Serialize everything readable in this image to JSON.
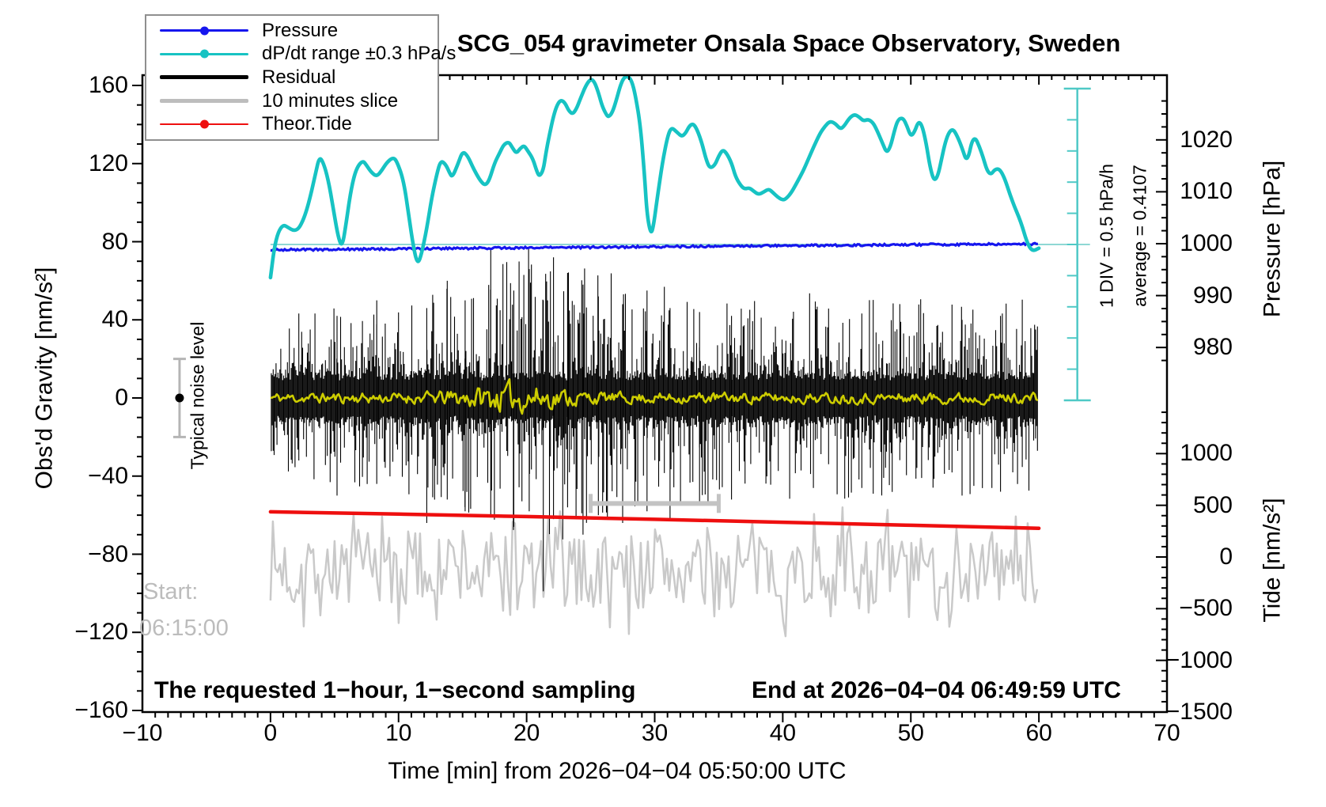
{
  "chart_data": {
    "type": "line",
    "title": "SCG_054 gravimeter Onsala Space Observatory, Sweden",
    "legend": {
      "position": "top-left",
      "items": [
        {
          "label": "Pressure",
          "color": "#1616ee",
          "marker": "dot-line",
          "thickness": 3
        },
        {
          "label": "dP/dt range ±0.3 hPa/s",
          "color": "#17c3c3",
          "marker": "dot-line",
          "thickness": 3
        },
        {
          "label": "Residual",
          "color": "#000000",
          "marker": "line",
          "thickness": 5
        },
        {
          "label": "10 minutes slice",
          "color": "#bdbdbd",
          "marker": "line",
          "thickness": 5
        },
        {
          "label": "Theor.Tide",
          "color": "#ee0f0f",
          "marker": "dot-line",
          "thickness": 2
        }
      ]
    },
    "x_axis": {
      "label": "Time [min] from 2026−04−04 05:50:00 UTC",
      "range": [
        -10,
        70
      ],
      "major_ticks": [
        -10,
        0,
        10,
        20,
        30,
        40,
        50,
        60,
        70
      ],
      "minor_step": 1,
      "grid": false
    },
    "y_axis_left": {
      "label": "Obs'd Gravity [nm/s²]",
      "range": [
        -161,
        165
      ],
      "major_ticks": [
        160,
        120,
        80,
        40,
        0,
        -40,
        -80,
        -120,
        -160
      ],
      "minor_step": 10,
      "grid": false
    },
    "y_axis_pressure": {
      "label": "Pressure [hPa]",
      "major_ticks": [
        1020,
        1010,
        1000,
        990,
        980
      ],
      "minor_step": 2.5
    },
    "y_axis_tide": {
      "label": "Tide [nm/s²]",
      "major_ticks": [
        1000,
        500,
        0,
        -500,
        -1000,
        -1500
      ],
      "minor_step": 100
    },
    "annotations": {
      "noise_bar": {
        "label": "Typical noise level",
        "center_nms2": 0,
        "half_range_nms2": 20,
        "x_min": -7.1
      },
      "start_label": {
        "line1": "Start:",
        "line2": "06:15:00"
      },
      "sampling_note": "The requested 1−hour, 1−second sampling",
      "end_note": "End at 2026−04−04 06:49:59 UTC",
      "div_scale": {
        "line1": "1 DIV = 0.5 hPa/h",
        "line2": "average = 0.4107",
        "divisions": 10,
        "div_hpa_per_h": 0.5,
        "x_min": 63
      },
      "slice_bar": {
        "from_min": 25,
        "to_min": 35,
        "at_nms2": -54
      }
    },
    "series": {
      "pressure_hpa": {
        "name": "Pressure",
        "color": "#1616ee",
        "unit": "hPa",
        "points": [
          [
            0,
            998.8
          ],
          [
            10,
            999.0
          ],
          [
            20,
            999.2
          ],
          [
            30,
            999.4
          ],
          [
            40,
            999.6
          ],
          [
            50,
            999.8
          ],
          [
            60,
            999.95
          ]
        ],
        "jitter_seed": 5
      },
      "dpdt_hpa_per_h": {
        "name": "dP/dt range ±0.3 hPa/s",
        "color": "#17c3c3",
        "unit": "hPa/h",
        "zero_ref_at_bar_mid": true,
        "points": [
          [
            0,
            -0.53
          ],
          [
            0.3,
            -0.05
          ],
          [
            0.6,
            0.2
          ],
          [
            1,
            0.32
          ],
          [
            1.4,
            0.27
          ],
          [
            1.8,
            0.22
          ],
          [
            2.2,
            0.25
          ],
          [
            2.6,
            0.41
          ],
          [
            3,
            0.67
          ],
          [
            3.5,
            1.12
          ],
          [
            3.8,
            1.4
          ],
          [
            4.1,
            1.33
          ],
          [
            4.5,
            1.05
          ],
          [
            4.9,
            0.58
          ],
          [
            5.3,
            0.1
          ],
          [
            5.6,
            -0.04
          ],
          [
            5.9,
            0.33
          ],
          [
            6.3,
            0.9
          ],
          [
            6.7,
            1.22
          ],
          [
            7.2,
            1.35
          ],
          [
            7.5,
            1.27
          ],
          [
            7.9,
            1.15
          ],
          [
            8.3,
            1.09
          ],
          [
            8.7,
            1.19
          ],
          [
            9.1,
            1.32
          ],
          [
            9.6,
            1.4
          ],
          [
            9.9,
            1.32
          ],
          [
            10.4,
            1.02
          ],
          [
            10.8,
            0.46
          ],
          [
            11.2,
            -0.09
          ],
          [
            11.5,
            -0.32
          ],
          [
            11.8,
            -0.15
          ],
          [
            12.2,
            0.25
          ],
          [
            12.6,
            0.76
          ],
          [
            13,
            1.14
          ],
          [
            13.3,
            1.35
          ],
          [
            13.7,
            1.28
          ],
          [
            14,
            1.14
          ],
          [
            14.2,
            1.08
          ],
          [
            14.6,
            1.27
          ],
          [
            15,
            1.5
          ],
          [
            15.4,
            1.42
          ],
          [
            15.8,
            1.24
          ],
          [
            16.1,
            1.12
          ],
          [
            16.5,
            0.99
          ],
          [
            16.8,
            0.95
          ],
          [
            17.1,
            1.04
          ],
          [
            17.5,
            1.31
          ],
          [
            17.9,
            1.47
          ],
          [
            18.2,
            1.6
          ],
          [
            18.6,
            1.65
          ],
          [
            18.9,
            1.55
          ],
          [
            19.2,
            1.46
          ],
          [
            19.5,
            1.54
          ],
          [
            19.8,
            1.59
          ],
          [
            20.1,
            1.5
          ],
          [
            20.5,
            1.37
          ],
          [
            20.8,
            1.17
          ],
          [
            21,
            1.09
          ],
          [
            21.3,
            1.19
          ],
          [
            21.5,
            1.46
          ],
          [
            21.8,
            1.78
          ],
          [
            22.1,
            2.06
          ],
          [
            22.4,
            2.25
          ],
          [
            22.7,
            2.32
          ],
          [
            23,
            2.27
          ],
          [
            23.3,
            2.14
          ],
          [
            23.6,
            2.09
          ],
          [
            23.9,
            2.18
          ],
          [
            24.2,
            2.34
          ],
          [
            24.6,
            2.54
          ],
          [
            25,
            2.66
          ],
          [
            25.3,
            2.61
          ],
          [
            25.6,
            2.44
          ],
          [
            25.9,
            2.22
          ],
          [
            26.2,
            2.09
          ],
          [
            26.4,
            2.04
          ],
          [
            26.7,
            2.12
          ],
          [
            27,
            2.31
          ],
          [
            27.3,
            2.54
          ],
          [
            27.6,
            2.68
          ],
          [
            27.9,
            2.7
          ],
          [
            28.2,
            2.63
          ],
          [
            28.5,
            2.39
          ],
          [
            28.9,
            1.88
          ],
          [
            29.2,
            1.12
          ],
          [
            29.4,
            0.48
          ],
          [
            29.7,
            0.16
          ],
          [
            29.9,
            0.29
          ],
          [
            30.2,
            0.74
          ],
          [
            30.6,
            1.31
          ],
          [
            31,
            1.73
          ],
          [
            31.3,
            1.88
          ],
          [
            31.7,
            1.81
          ],
          [
            32.1,
            1.73
          ],
          [
            32.4,
            1.78
          ],
          [
            32.7,
            1.9
          ],
          [
            33,
            1.94
          ],
          [
            33.3,
            1.85
          ],
          [
            33.7,
            1.62
          ],
          [
            34,
            1.37
          ],
          [
            34.3,
            1.22
          ],
          [
            34.7,
            1.27
          ],
          [
            35,
            1.42
          ],
          [
            35.3,
            1.52
          ],
          [
            35.6,
            1.47
          ],
          [
            36,
            1.31
          ],
          [
            36.3,
            1.09
          ],
          [
            36.7,
            0.95
          ],
          [
            37,
            0.89
          ],
          [
            37.4,
            0.91
          ],
          [
            37.7,
            0.86
          ],
          [
            38.1,
            0.8
          ],
          [
            38.5,
            0.84
          ],
          [
            38.9,
            0.89
          ],
          [
            39.2,
            0.84
          ],
          [
            39.6,
            0.76
          ],
          [
            40,
            0.71
          ],
          [
            40.3,
            0.74
          ],
          [
            40.7,
            0.84
          ],
          [
            41.1,
            0.99
          ],
          [
            41.6,
            1.18
          ],
          [
            42,
            1.37
          ],
          [
            42.4,
            1.56
          ],
          [
            42.9,
            1.78
          ],
          [
            43.3,
            1.9
          ],
          [
            43.7,
            1.98
          ],
          [
            44.1,
            1.94
          ],
          [
            44.5,
            1.85
          ],
          [
            44.8,
            1.9
          ],
          [
            45.2,
            2.03
          ],
          [
            45.6,
            2.09
          ],
          [
            46,
            2.04
          ],
          [
            46.3,
            1.98
          ],
          [
            46.7,
            2.01
          ],
          [
            47.1,
            1.94
          ],
          [
            47.4,
            1.81
          ],
          [
            47.8,
            1.62
          ],
          [
            48.1,
            1.47
          ],
          [
            48.4,
            1.56
          ],
          [
            48.7,
            1.81
          ],
          [
            49,
            2.01
          ],
          [
            49.4,
            2.03
          ],
          [
            49.7,
            1.9
          ],
          [
            50,
            1.73
          ],
          [
            50.3,
            1.81
          ],
          [
            50.6,
            1.98
          ],
          [
            50.9,
            1.9
          ],
          [
            51.2,
            1.62
          ],
          [
            51.5,
            1.24
          ],
          [
            51.8,
            1.02
          ],
          [
            52.1,
            1.09
          ],
          [
            52.4,
            1.37
          ],
          [
            52.7,
            1.65
          ],
          [
            53,
            1.81
          ],
          [
            53.3,
            1.85
          ],
          [
            53.6,
            1.75
          ],
          [
            54,
            1.55
          ],
          [
            54.4,
            1.3
          ],
          [
            54.9,
            1.78
          ],
          [
            55.5,
            1.5
          ],
          [
            56.1,
            1.08
          ],
          [
            56.7,
            1.24
          ],
          [
            57.2,
            1.14
          ],
          [
            57.9,
            0.7
          ],
          [
            58.6,
            0.36
          ],
          [
            59.1,
            0.01
          ],
          [
            59.5,
            -0.11
          ],
          [
            60,
            -0.06
          ]
        ]
      },
      "theor_tide_nms2": {
        "name": "Theor.Tide",
        "color": "#ee0f0f",
        "unit": "nm/s²",
        "points": [
          [
            0,
            437
          ],
          [
            10,
            415
          ],
          [
            20,
            391
          ],
          [
            30,
            364
          ],
          [
            40,
            336
          ],
          [
            50,
            307
          ],
          [
            60,
            278
          ]
        ]
      },
      "residual_nms2": {
        "name": "Residual",
        "color": "#000000",
        "unit": "nm/s²",
        "mean": 0,
        "envelope_amp": [
          [
            0,
            30
          ],
          [
            4,
            34
          ],
          [
            8,
            38
          ],
          [
            12,
            42
          ],
          [
            14,
            46
          ],
          [
            16,
            52
          ],
          [
            18,
            58
          ],
          [
            20,
            66
          ],
          [
            21,
            72
          ],
          [
            22,
            68
          ],
          [
            23,
            62
          ],
          [
            24,
            58
          ],
          [
            26,
            54
          ],
          [
            28,
            50
          ],
          [
            30,
            48
          ],
          [
            32,
            46
          ],
          [
            34,
            44
          ],
          [
            36,
            44
          ],
          [
            38,
            43
          ],
          [
            40,
            42
          ],
          [
            42,
            42
          ],
          [
            44,
            41
          ],
          [
            46,
            42
          ],
          [
            48,
            40
          ],
          [
            50,
            42
          ],
          [
            52,
            39
          ],
          [
            54,
            40
          ],
          [
            56,
            38
          ],
          [
            58,
            39
          ],
          [
            60,
            37
          ]
        ],
        "spikes": [
          [
            5.2,
            42,
            -50
          ],
          [
            8.3,
            50,
            -44
          ],
          [
            12.2,
            46,
            -64
          ],
          [
            13.8,
            60,
            -52
          ],
          [
            15.2,
            50,
            -58
          ],
          [
            17.2,
            76,
            -60
          ],
          [
            19,
            55,
            -66
          ],
          [
            20.2,
            66,
            -58
          ],
          [
            21.3,
            50,
            -99
          ],
          [
            22.1,
            72,
            -62
          ],
          [
            23.2,
            64,
            -56
          ],
          [
            24.4,
            58,
            -70
          ],
          [
            25.6,
            52,
            -60
          ],
          [
            27.5,
            48,
            -64
          ],
          [
            29.4,
            55,
            -58
          ],
          [
            31.2,
            46,
            -62
          ],
          [
            33.5,
            44,
            -55
          ],
          [
            36,
            42,
            -52
          ],
          [
            54,
            40,
            -50
          ],
          [
            57,
            42,
            -48
          ]
        ],
        "seed": 42
      },
      "residual_smoothed_nms2": {
        "name": "smoothed residual",
        "color": "#cdcd00",
        "unit": "nm/s²",
        "mean": 0,
        "base_amp": 2.5,
        "bulge_center_min": 19,
        "bulge_amp": 4.5,
        "seed": 11
      },
      "slice_trace_nms2": {
        "name": "10 minutes slice",
        "color": "#c9c9c9",
        "unit": "nm/s²",
        "center": -88,
        "range": [
          -122,
          -56
        ],
        "seed": 7
      }
    }
  }
}
